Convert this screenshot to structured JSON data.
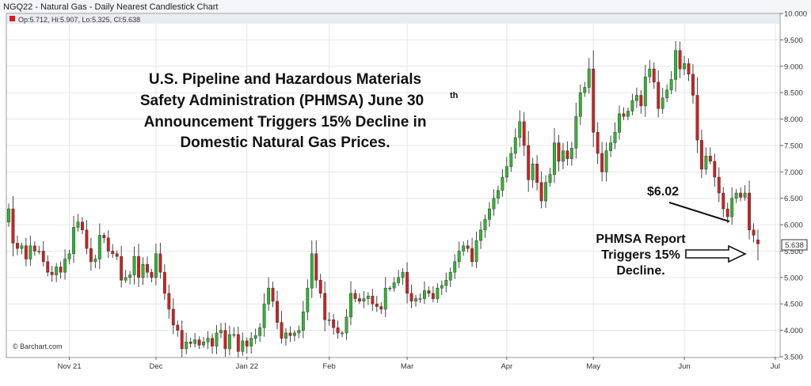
{
  "header": {
    "title": "NGQ22 - Natural Gas - Daily Nearest Candlestick Chart",
    "legend": "Op:5.712, Hi:5.907, Lo:5.325, Cl:5.638"
  },
  "colors": {
    "up": "#2db82d",
    "down": "#d21f1f",
    "wick": "#333333",
    "grid": "#e6e6e6",
    "frame": "#888888",
    "header_bg": "#e9ecf2",
    "last_label_bg": "#ffffff"
  },
  "annotations": {
    "headline_lines": [
      "U.S. Pipeline and Hazardous Materials",
      "Safety Administration (PHMSA) June 30",
      "Announcement Triggers 15% Decline in",
      "Domestic Natural Gas Prices."
    ],
    "headline_sup": "th",
    "price_callout": "$6.02",
    "report_lines": [
      "PHMSA Report",
      "Triggers 15%",
      "Decline."
    ],
    "credit": "© Barchart.com",
    "last_value_label": "5.638"
  },
  "chart_data": {
    "type": "candlestick",
    "title": "NGQ22 - Natural Gas - Daily Nearest Candlestick Chart",
    "ylim": [
      3.5,
      10.0
    ],
    "y_ticks": [
      "3.500",
      "4.000",
      "4.500",
      "5.000",
      "5.500",
      "6.000",
      "6.500",
      "7.000",
      "7.500",
      "8.000",
      "8.500",
      "9.000",
      "9.500",
      "10.000"
    ],
    "x_ticks": [
      {
        "label": "Nov 21",
        "index": 14
      },
      {
        "label": "Dec",
        "index": 34
      },
      {
        "label": "Jan 22",
        "index": 55
      },
      {
        "label": "Feb",
        "index": 74
      },
      {
        "label": "Mar",
        "index": 92
      },
      {
        "label": "Apr",
        "index": 115
      },
      {
        "label": "May",
        "index": 135
      },
      {
        "label": "Jun",
        "index": 156
      },
      {
        "label": "Jul",
        "index": 177
      }
    ],
    "grid": true,
    "last": {
      "open": 5.712,
      "high": 5.907,
      "low": 5.325,
      "close": 5.638
    },
    "closes": [
      6.3,
      5.65,
      5.55,
      5.6,
      5.35,
      5.6,
      5.5,
      5.5,
      5.3,
      5.1,
      5.05,
      5.2,
      5.1,
      5.35,
      5.45,
      5.95,
      6.05,
      5.9,
      5.55,
      5.3,
      5.35,
      5.8,
      5.75,
      5.5,
      5.45,
      5.4,
      4.95,
      5.0,
      5.05,
      5.4,
      5.0,
      5.25,
      5.1,
      5.0,
      5.45,
      5.1,
      4.7,
      4.4,
      4.1,
      4.0,
      3.65,
      3.78,
      3.75,
      3.82,
      3.72,
      3.78,
      3.85,
      3.7,
      3.95,
      4.0,
      3.65,
      3.92,
      3.92,
      3.6,
      3.8,
      3.7,
      3.85,
      3.9,
      4.05,
      4.5,
      4.8,
      4.55,
      4.15,
      3.85,
      3.95,
      3.9,
      3.95,
      4.0,
      4.35,
      4.8,
      5.45,
      4.95,
      4.7,
      4.2,
      4.2,
      4.05,
      3.95,
      3.95,
      4.25,
      4.7,
      4.6,
      4.55,
      4.6,
      4.65,
      4.5,
      4.45,
      4.4,
      4.8,
      4.8,
      4.9,
      5.0,
      5.1,
      4.7,
      4.55,
      4.6,
      4.6,
      4.75,
      4.7,
      4.6,
      4.8,
      4.85,
      4.95,
      5.1,
      5.3,
      5.5,
      5.6,
      5.55,
      5.3,
      5.7,
      5.9,
      6.1,
      6.3,
      6.5,
      6.65,
      6.9,
      7.1,
      7.35,
      7.65,
      7.95,
      7.5,
      6.85,
      7.15,
      6.8,
      6.45,
      6.8,
      6.95,
      7.55,
      7.2,
      7.4,
      7.25,
      7.45,
      8.05,
      8.5,
      8.6,
      8.95,
      7.75,
      7.35,
      7.0,
      7.4,
      7.55,
      7.75,
      8.1,
      8.05,
      8.15,
      8.35,
      8.45,
      8.25,
      8.8,
      8.95,
      8.7,
      8.2,
      8.4,
      8.55,
      8.75,
      9.3,
      8.95,
      9.05,
      8.85,
      8.45,
      7.6,
      7.05,
      7.3,
      7.2,
      6.9,
      6.6,
      6.3,
      6.15,
      6.5,
      6.6,
      6.52,
      6.6,
      5.9,
      5.8,
      5.64
    ]
  }
}
